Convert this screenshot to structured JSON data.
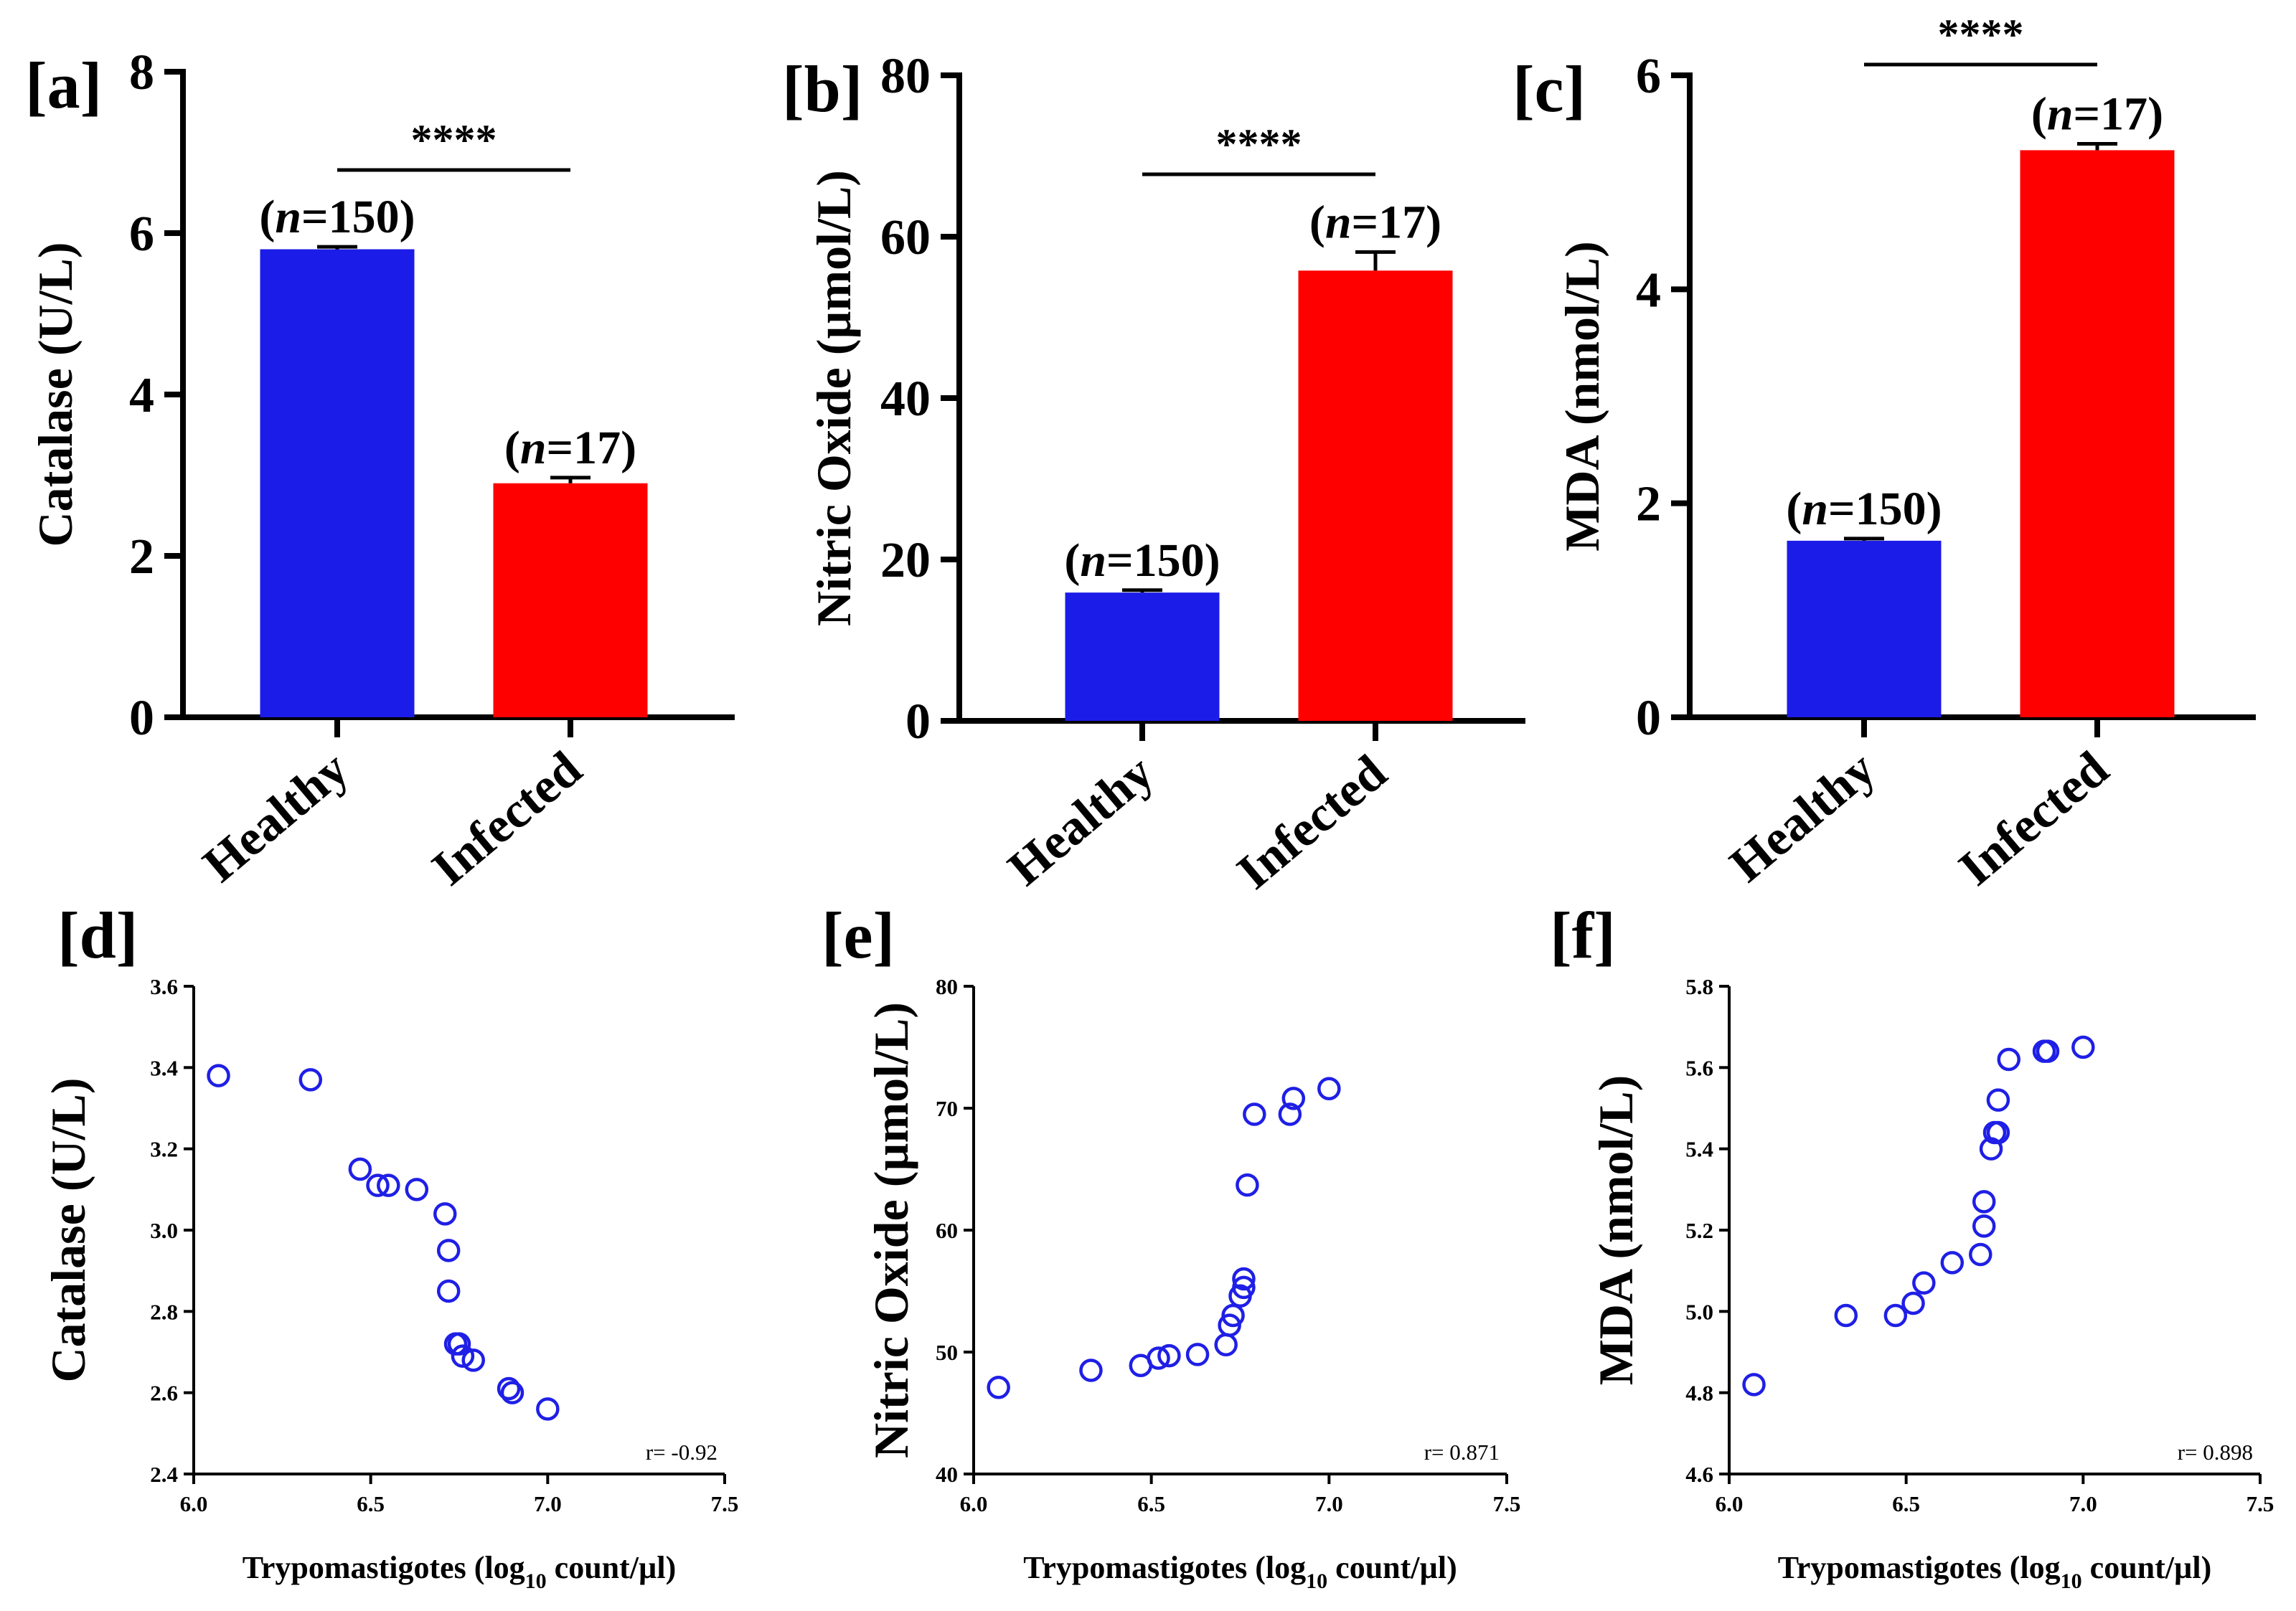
{
  "chart_data": [
    {
      "panel": "[a]",
      "type": "bar",
      "categories": [
        "Healthy",
        "Infected"
      ],
      "values": [
        5.8,
        2.9
      ],
      "errors": [
        0.03,
        0.07
      ],
      "colors": [
        "#1c1ce8",
        "#ff0000"
      ],
      "annotations": [
        "(n=150)",
        "(n=17)"
      ],
      "n_prefix": "n",
      "n_values": [
        "=150",
        "=17"
      ],
      "significance": "****",
      "ylabel": "Catalase (U/L)",
      "ylim": [
        0,
        8
      ],
      "yticks": [
        0,
        2,
        4,
        6,
        8
      ]
    },
    {
      "panel": "[b]",
      "type": "bar",
      "categories": [
        "Healthy",
        "Infected"
      ],
      "values": [
        15.9,
        55.8
      ],
      "errors": [
        0.3,
        2.3
      ],
      "colors": [
        "#1c1ce8",
        "#ff0000"
      ],
      "annotations": [
        "(n=150)",
        "(n=17)"
      ],
      "n_prefix": "n",
      "n_values": [
        "=150",
        "=17"
      ],
      "significance": "****",
      "ylabel": "Nitric Oxide (µmol/L)",
      "ylim": [
        0,
        80
      ],
      "yticks": [
        0,
        20,
        40,
        60,
        80
      ]
    },
    {
      "panel": "[c]",
      "type": "bar",
      "categories": [
        "Healthy",
        "Infected"
      ],
      "values": [
        1.65,
        5.3
      ],
      "errors": [
        0.02,
        0.06
      ],
      "colors": [
        "#1c1ce8",
        "#ff0000"
      ],
      "annotations": [
        "(n=150)",
        "(n=17)"
      ],
      "n_prefix": "n",
      "n_values": [
        "=150",
        "=17"
      ],
      "significance": "****",
      "ylabel": "MDA (nmol/L)",
      "ylim": [
        0,
        6
      ],
      "yticks": [
        0,
        2,
        4,
        6
      ]
    },
    {
      "panel": "[d]",
      "type": "scatter",
      "xlabel_prefix": "Trypomastigotes (log",
      "xlabel_sub": "10",
      "xlabel_suffix": " count/µl)",
      "ylabel": "Catalase (U/L)",
      "xlim": [
        6.0,
        7.5
      ],
      "xticks": [
        "6.0",
        "6.5",
        "7.0",
        "7.5"
      ],
      "ylim": [
        2.4,
        3.6
      ],
      "yticks": [
        "2.4",
        "2.6",
        "2.8",
        "3.0",
        "3.2",
        "3.4",
        "3.6"
      ],
      "r_label": "r= -0.92",
      "points": [
        [
          6.07,
          3.38
        ],
        [
          6.33,
          3.37
        ],
        [
          6.47,
          3.15
        ],
        [
          6.52,
          3.11
        ],
        [
          6.55,
          3.11
        ],
        [
          6.63,
          3.1
        ],
        [
          6.71,
          3.04
        ],
        [
          6.72,
          2.95
        ],
        [
          6.72,
          2.85
        ],
        [
          6.74,
          2.72
        ],
        [
          6.75,
          2.72
        ],
        [
          6.76,
          2.69
        ],
        [
          6.79,
          2.68
        ],
        [
          6.89,
          2.61
        ],
        [
          6.9,
          2.6
        ],
        [
          7.0,
          2.56
        ]
      ]
    },
    {
      "panel": "[e]",
      "type": "scatter",
      "xlabel_prefix": "Trypomastigotes (log",
      "xlabel_sub": "10",
      "xlabel_suffix": " count/µl)",
      "ylabel": "Nitric Oxide (µmol/L)",
      "xlim": [
        6.0,
        7.5
      ],
      "xticks": [
        "6.0",
        "6.5",
        "7.0",
        "7.5"
      ],
      "ylim": [
        40,
        80
      ],
      "yticks": [
        "40",
        "50",
        "60",
        "70",
        "80"
      ],
      "r_label": "r= 0.871",
      "points": [
        [
          6.07,
          47.1
        ],
        [
          6.33,
          48.5
        ],
        [
          6.47,
          48.9
        ],
        [
          6.52,
          49.5
        ],
        [
          6.55,
          49.7
        ],
        [
          6.63,
          49.8
        ],
        [
          6.71,
          50.6
        ],
        [
          6.72,
          52.2
        ],
        [
          6.73,
          53.0
        ],
        [
          6.75,
          54.6
        ],
        [
          6.76,
          55.3
        ],
        [
          6.76,
          56.0
        ],
        [
          6.77,
          63.7
        ],
        [
          6.79,
          69.5
        ],
        [
          6.89,
          69.5
        ],
        [
          6.9,
          70.8
        ],
        [
          7.0,
          71.6
        ]
      ]
    },
    {
      "panel": "[f]",
      "type": "scatter",
      "xlabel_prefix": "Trypomastigotes (log",
      "xlabel_sub": "10",
      "xlabel_suffix": " count/µl)",
      "ylabel": "MDA (nmol/L)",
      "xlim": [
        6.0,
        7.5
      ],
      "xticks": [
        "6.0",
        "6.5",
        "7.0",
        "7.5"
      ],
      "ylim": [
        4.6,
        5.8
      ],
      "yticks": [
        "4.6",
        "4.8",
        "5.0",
        "5.2",
        "5.4",
        "5.6",
        "5.8"
      ],
      "r_label": "r= 0.898",
      "points": [
        [
          6.07,
          4.82
        ],
        [
          6.33,
          4.99
        ],
        [
          6.47,
          4.99
        ],
        [
          6.52,
          5.02
        ],
        [
          6.55,
          5.07
        ],
        [
          6.63,
          5.12
        ],
        [
          6.71,
          5.14
        ],
        [
          6.72,
          5.21
        ],
        [
          6.72,
          5.27
        ],
        [
          6.74,
          5.4
        ],
        [
          6.75,
          5.44
        ],
        [
          6.76,
          5.44
        ],
        [
          6.76,
          5.52
        ],
        [
          6.79,
          5.62
        ],
        [
          6.89,
          5.64
        ],
        [
          6.9,
          5.64
        ],
        [
          7.0,
          5.65
        ]
      ]
    }
  ]
}
